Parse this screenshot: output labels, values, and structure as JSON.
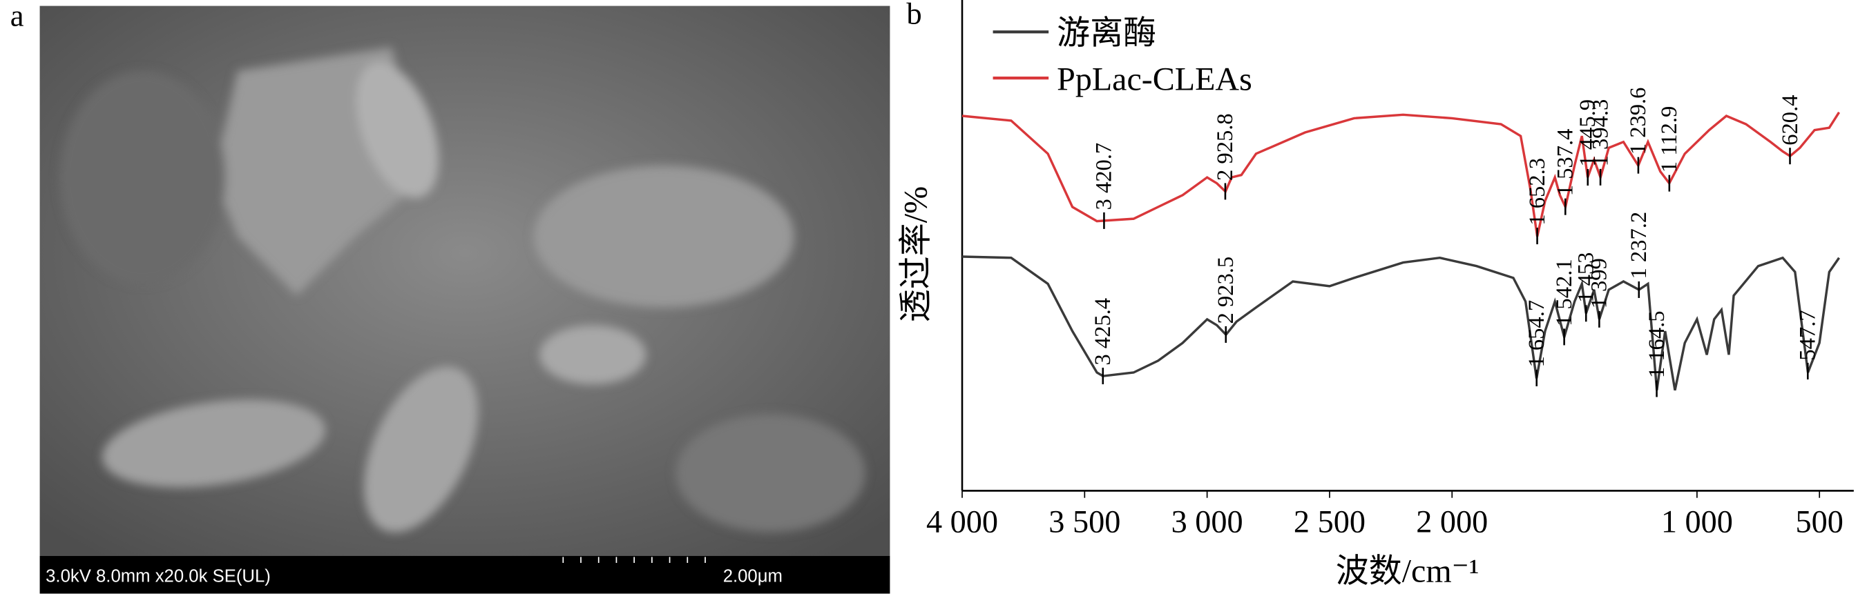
{
  "panel_a": {
    "label": "a",
    "info": "3.0kV 8.0mm x20.0k SE(UL)",
    "scale": "2.00μm"
  },
  "chart_data": {
    "type": "line",
    "panel": "b",
    "x_label": "波数/cm⁻¹",
    "y_label": "透过率/%",
    "xlim": [
      4000,
      360
    ],
    "ylim": [
      0,
      415
    ],
    "xticks": [
      {
        "value": 4000,
        "label": "4 000"
      },
      {
        "value": 3500,
        "label": "3 500"
      },
      {
        "value": 3000,
        "label": "3 000"
      },
      {
        "value": 2500,
        "label": "2 500"
      },
      {
        "value": 2000,
        "label": "2 000"
      },
      {
        "value": 1000,
        "label": "1 000"
      },
      500
    ],
    "series": [
      {
        "name": "游离酶",
        "color": "#3a3a3a",
        "x": [
          4000,
          3800,
          3650,
          3550,
          3450,
          3425,
          3300,
          3200,
          3100,
          3000,
          2960,
          2923,
          2880,
          2800,
          2650,
          2500,
          2400,
          2200,
          2050,
          1900,
          1750,
          1700,
          1655,
          1620,
          1580,
          1542,
          1500,
          1470,
          1453,
          1420,
          1399,
          1360,
          1300,
          1237,
          1200,
          1164,
          1130,
          1090,
          1050,
          1000,
          960,
          930,
          900,
          870,
          850,
          750,
          650,
          600,
          547,
          500,
          460,
          420
        ],
        "values": [
          198,
          197,
          175,
          135,
          100,
          97,
          100,
          110,
          125,
          145,
          140,
          132,
          143,
          155,
          177,
          173,
          180,
          193,
          197,
          190,
          180,
          160,
          95,
          135,
          160,
          130,
          160,
          175,
          150,
          170,
          145,
          170,
          177,
          170,
          175,
          85,
          135,
          85,
          125,
          145,
          115,
          145,
          153,
          115,
          165,
          190,
          197,
          185,
          100,
          125,
          185,
          197
        ],
        "peaks": [
          {
            "value": 3425.4,
            "label": "3 425.4"
          },
          {
            "value": 2923.5,
            "label": "2 923.5"
          },
          {
            "value": 1654.7,
            "label": "1 654.7"
          },
          {
            "value": 1542.1,
            "label": "1 542.1"
          },
          {
            "value": 1453,
            "label": "1 453"
          },
          {
            "value": 1399,
            "label": "1 399"
          },
          {
            "value": 1237.2,
            "label": "1 237.2"
          },
          {
            "value": 1164.5,
            "label": "1 164.5"
          },
          547.7
        ]
      },
      {
        "name": "PpLac-CLEAs",
        "color": "#d9373a",
        "x": [
          4000,
          3800,
          3650,
          3550,
          3450,
          3300,
          3200,
          3100,
          3000,
          2960,
          2925,
          2900,
          2860,
          2800,
          2600,
          2400,
          2200,
          2000,
          1800,
          1720,
          1680,
          1652,
          1620,
          1580,
          1560,
          1537,
          1500,
          1470,
          1446,
          1420,
          1394,
          1360,
          1300,
          1240,
          1200,
          1150,
          1113,
          1050,
          950,
          880,
          800,
          700,
          650,
          620,
          580,
          520,
          460,
          420
        ],
        "values": [
          317,
          313,
          285,
          240,
          228,
          230,
          240,
          250,
          265,
          260,
          253,
          265,
          267,
          285,
          303,
          315,
          318,
          315,
          310,
          300,
          255,
          215,
          245,
          265,
          250,
          240,
          275,
          300,
          265,
          280,
          265,
          290,
          295,
          275,
          295,
          270,
          260,
          285,
          305,
          317,
          310,
          295,
          287,
          283,
          290,
          305,
          307,
          320
        ],
        "peaks": [
          {
            "value": 3420.7,
            "label": "3 420.7"
          },
          {
            "value": 2925.8,
            "label": "2 925.8"
          },
          {
            "value": 1652.3,
            "label": "1 652.3"
          },
          {
            "value": 1537.4,
            "label": "1 537.4"
          },
          {
            "value": 1445.9,
            "label": "1 445.9"
          },
          {
            "value": 1394.3,
            "label": "1 394.3"
          },
          {
            "value": 1239.6,
            "label": "1 239.6"
          },
          {
            "value": 1112.9,
            "label": "1 112.9"
          },
          620.4
        ]
      }
    ]
  }
}
